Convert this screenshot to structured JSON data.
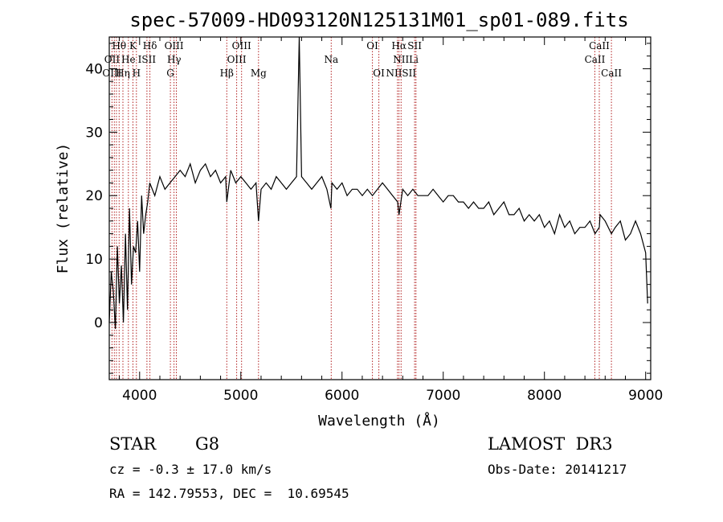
{
  "chart_data": {
    "type": "line",
    "title": "spec-57009-HD093120N125131M01_sp01-089.fits",
    "xlabel": "Wavelength (Å)",
    "ylabel": "Flux (relative)",
    "xlim": [
      3700,
      9050
    ],
    "ylim": [
      -9,
      45
    ],
    "xticks": [
      4000,
      5000,
      6000,
      7000,
      8000,
      9000
    ],
    "yticks": [
      0,
      10,
      20,
      30,
      40
    ],
    "series": [
      {
        "name": "flux",
        "x": [
          3700,
          3720,
          3740,
          3760,
          3780,
          3800,
          3820,
          3840,
          3860,
          3880,
          3900,
          3920,
          3940,
          3960,
          3980,
          4000,
          4020,
          4040,
          4060,
          4080,
          4100,
          4150,
          4200,
          4250,
          4300,
          4350,
          4400,
          4450,
          4500,
          4550,
          4600,
          4650,
          4700,
          4750,
          4800,
          4850,
          4861,
          4900,
          4950,
          5000,
          5050,
          5100,
          5150,
          5175,
          5200,
          5250,
          5300,
          5350,
          5400,
          5450,
          5500,
          5550,
          5577,
          5600,
          5650,
          5700,
          5750,
          5800,
          5850,
          5890,
          5900,
          5950,
          6000,
          6050,
          6100,
          6150,
          6200,
          6250,
          6300,
          6350,
          6400,
          6450,
          6500,
          6550,
          6563,
          6600,
          6650,
          6700,
          6750,
          6800,
          6850,
          6900,
          6950,
          7000,
          7050,
          7100,
          7150,
          7200,
          7250,
          7300,
          7350,
          7400,
          7450,
          7500,
          7550,
          7600,
          7650,
          7700,
          7750,
          7800,
          7850,
          7900,
          7950,
          8000,
          8050,
          8100,
          8150,
          8200,
          8250,
          8300,
          8350,
          8400,
          8450,
          8500,
          8542,
          8550,
          8600,
          8662,
          8700,
          8750,
          8800,
          8850,
          8900,
          8950,
          9000,
          9020
        ],
        "y": [
          0,
          8,
          5,
          -1,
          12,
          3,
          9,
          0,
          14,
          2,
          18,
          6,
          12,
          11,
          16,
          8,
          20,
          14,
          17,
          19,
          22,
          20,
          23,
          21,
          22,
          23,
          24,
          23,
          25,
          22,
          24,
          25,
          23,
          24,
          22,
          23,
          19,
          24,
          22,
          23,
          22,
          21,
          22,
          16,
          21,
          22,
          21,
          23,
          22,
          21,
          22,
          23,
          45,
          23,
          22,
          21,
          22,
          23,
          21,
          18,
          22,
          21,
          22,
          20,
          21,
          21,
          20,
          21,
          20,
          21,
          22,
          21,
          20,
          19,
          17,
          21,
          20,
          21,
          20,
          20,
          20,
          21,
          20,
          19,
          20,
          20,
          19,
          19,
          18,
          19,
          18,
          18,
          19,
          17,
          18,
          19,
          17,
          17,
          18,
          16,
          17,
          16,
          17,
          15,
          16,
          14,
          17,
          15,
          16,
          14,
          15,
          15,
          16,
          14,
          15,
          17,
          16,
          14,
          15,
          16,
          13,
          14,
          16,
          14,
          11,
          3
        ]
      }
    ],
    "spectral_lines": [
      {
        "label": "Hθ",
        "wave": 3798,
        "row": 0
      },
      {
        "label": "K",
        "wave": 3934,
        "row": 0
      },
      {
        "label": "Hδ",
        "wave": 4102,
        "row": 0
      },
      {
        "label": "OIII",
        "wave": 4340,
        "row": 0
      },
      {
        "label": "OIII",
        "wave": 5007,
        "row": 0
      },
      {
        "label": "OI",
        "wave": 6300,
        "row": 0
      },
      {
        "label": "Hα",
        "wave": 6563,
        "row": 0
      },
      {
        "label": "SII",
        "wave": 6717,
        "row": 0
      },
      {
        "label": "CaII",
        "wave": 8542,
        "row": 0
      },
      {
        "label": "OII",
        "wave": 3727,
        "row": 1
      },
      {
        "label": "He",
        "wave": 3889,
        "row": 1
      },
      {
        "label": "ISII",
        "wave": 4072,
        "row": 1
      },
      {
        "label": "Hγ",
        "wave": 4341,
        "row": 1
      },
      {
        "label": "OIII",
        "wave": 4959,
        "row": 1
      },
      {
        "label": "Na",
        "wave": 5893,
        "row": 1
      },
      {
        "label": "NII",
        "wave": 6584,
        "row": 1
      },
      {
        "label": "Li",
        "wave": 6708,
        "row": 1
      },
      {
        "label": "CaII",
        "wave": 8498,
        "row": 1
      },
      {
        "label": "OIII",
        "wave": 3727,
        "row": 2
      },
      {
        "label": "Hη",
        "wave": 3835,
        "row": 2
      },
      {
        "label": "H",
        "wave": 3968,
        "row": 2
      },
      {
        "label": "G",
        "wave": 4304,
        "row": 2
      },
      {
        "label": "Hβ",
        "wave": 4861,
        "row": 2
      },
      {
        "label": "Mg",
        "wave": 5175,
        "row": 2
      },
      {
        "label": "OI",
        "wave": 6364,
        "row": 2
      },
      {
        "label": "NIISII",
        "wave": 6584,
        "row": 2
      },
      {
        "label": "CaII",
        "wave": 8662,
        "row": 2
      }
    ],
    "line_waves": [
      3727,
      3750,
      3771,
      3798,
      3835,
      3889,
      3934,
      3968,
      4072,
      4102,
      4304,
      4340,
      4363,
      4861,
      4959,
      5007,
      5175,
      5893,
      6300,
      6364,
      6548,
      6563,
      6584,
      6717,
      6731,
      8498,
      8542,
      8662
    ]
  },
  "info": {
    "object_class": "STAR",
    "subclass": "G8",
    "survey": "LAMOST  DR3",
    "cz_line": "cz = -0.3 ± 17.0 km/s",
    "obs_date": "Obs-Date: 20141217",
    "coords": "RA = 142.79553, DEC =  10.69545"
  },
  "colors": {
    "axis": "#000000",
    "spectrum": "#000000",
    "line_marker": "#b22222"
  }
}
